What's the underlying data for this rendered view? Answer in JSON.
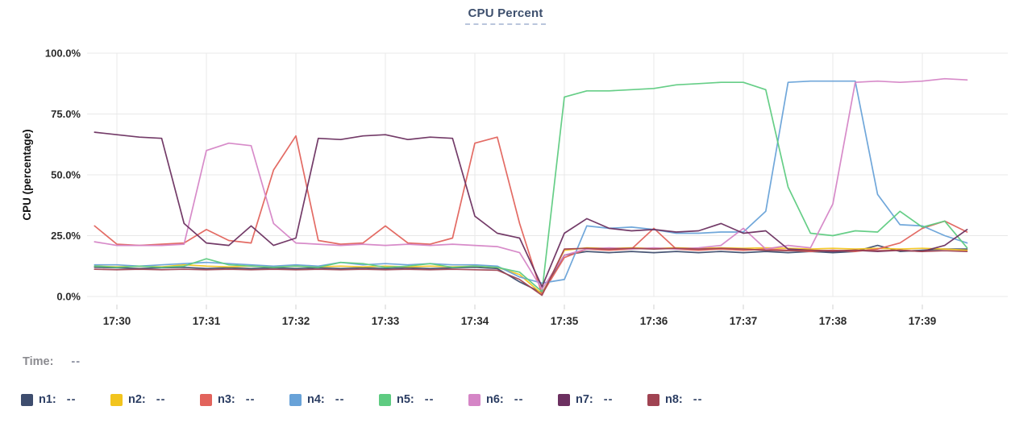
{
  "header": {
    "title": "CPU Percent"
  },
  "legend": {
    "time_label": "Time:",
    "time_value": "--",
    "entries": [
      {
        "label": "n1:",
        "value": "--"
      },
      {
        "label": "n2:",
        "value": "--"
      },
      {
        "label": "n3:",
        "value": "--"
      },
      {
        "label": "n4:",
        "value": "--"
      },
      {
        "label": "n5:",
        "value": "--"
      },
      {
        "label": "n6:",
        "value": "--"
      },
      {
        "label": "n7:",
        "value": "--"
      },
      {
        "label": "n8:",
        "value": "--"
      }
    ]
  },
  "chart_data": {
    "type": "line",
    "title": "CPU Percent",
    "ylabel": "CPU (percentage)",
    "ylim": [
      0,
      100
    ],
    "y_tick_labels": [
      "100.0%",
      "75.0%",
      "50.0%",
      "25.0%",
      "0.0%"
    ],
    "y_tick_values": [
      100,
      75,
      50,
      25,
      0
    ],
    "x_tick_labels": [
      "17:30",
      "17:31",
      "17:32",
      "17:33",
      "17:34",
      "17:35",
      "17:36",
      "17:37",
      "17:38",
      "17:39"
    ],
    "grid": true,
    "legend_position": "bottom",
    "sample_interval_seconds": 15,
    "sample_times": [
      "17:29:45",
      "17:30:00",
      "17:30:15",
      "17:30:30",
      "17:30:45",
      "17:31:00",
      "17:31:15",
      "17:31:30",
      "17:31:45",
      "17:32:00",
      "17:32:15",
      "17:32:30",
      "17:32:45",
      "17:33:00",
      "17:33:15",
      "17:33:30",
      "17:33:45",
      "17:34:00",
      "17:34:15",
      "17:34:30",
      "17:34:45",
      "17:35:00",
      "17:35:15",
      "17:35:30",
      "17:35:45",
      "17:36:00",
      "17:36:15",
      "17:36:30",
      "17:36:45",
      "17:37:00",
      "17:37:15",
      "17:37:30",
      "17:37:45",
      "17:38:00",
      "17:38:15",
      "17:38:30",
      "17:38:45",
      "17:39:00",
      "17:39:15",
      "17:39:30"
    ],
    "series": [
      {
        "name": "n1",
        "color": "#3e4d6e",
        "values": [
          12,
          11.8,
          11.5,
          11.8,
          12,
          11.5,
          11.8,
          11.5,
          11.8,
          11.5,
          11.8,
          11.5,
          11.8,
          11.5,
          11.8,
          11.5,
          11.8,
          12,
          11.5,
          6,
          1.5,
          17,
          18.5,
          18,
          18.5,
          18,
          18.5,
          18,
          18.5,
          18,
          18.5,
          18,
          18.5,
          18,
          18.5,
          21,
          18.5,
          19,
          19.5,
          19.5
        ]
      },
      {
        "name": "n2",
        "color": "#f2c41d",
        "values": [
          12.5,
          12.2,
          12.5,
          12.2,
          13,
          12.5,
          12.2,
          12.5,
          12.2,
          12.5,
          12.2,
          12.5,
          12.2,
          12.5,
          12.2,
          12.5,
          12.2,
          12.5,
          12,
          9,
          1,
          19,
          20,
          19.8,
          20,
          19.8,
          20,
          19.8,
          20,
          19.8,
          20,
          19.8,
          19.5,
          19.8,
          19.5,
          19.8,
          19.5,
          19.8,
          19.5,
          19
        ]
      },
      {
        "name": "n3",
        "color": "#e2635c",
        "values": [
          29,
          21.5,
          21,
          21.5,
          22,
          27.5,
          23,
          22,
          52,
          66,
          23,
          21.5,
          22,
          29,
          22,
          21.5,
          24,
          63,
          65.5,
          30,
          1,
          16,
          19.5,
          19,
          19.5,
          28,
          19.5,
          19,
          19.5,
          19,
          19.5,
          19,
          18.5,
          19,
          18.5,
          19.5,
          22,
          28,
          31,
          26.5
        ]
      },
      {
        "name": "n4",
        "color": "#68a2d8",
        "values": [
          13,
          13,
          12.5,
          13,
          13.5,
          14,
          13.5,
          13,
          12.5,
          13,
          12.5,
          14,
          13,
          13.5,
          13,
          13.5,
          13,
          13,
          12.5,
          8,
          5.5,
          7,
          29,
          28,
          28.5,
          27.5,
          26,
          26,
          26.5,
          26.5,
          35,
          88,
          88.5,
          88.5,
          88.5,
          42,
          29.5,
          29,
          25,
          22
        ]
      },
      {
        "name": "n5",
        "color": "#5ecb81",
        "values": [
          12.5,
          12,
          12.5,
          12,
          12.5,
          15.5,
          13,
          12.5,
          12,
          12.5,
          12,
          14,
          13.5,
          12,
          12.5,
          13.5,
          12,
          12.5,
          12,
          10,
          2,
          82,
          84.5,
          84.5,
          85,
          85.5,
          87,
          87.5,
          88,
          88,
          85,
          45,
          26,
          25,
          27,
          26.5,
          35,
          28.5,
          31,
          20
        ]
      },
      {
        "name": "n6",
        "color": "#d585c6",
        "values": [
          22.5,
          21,
          21,
          21,
          21.5,
          60,
          63,
          62,
          30,
          22,
          21.5,
          21,
          21.5,
          21,
          21.5,
          21,
          21.5,
          21,
          20.5,
          18,
          3,
          17,
          19.5,
          20,
          19.5,
          20,
          19.5,
          20,
          21,
          28,
          19.5,
          21,
          20,
          38,
          88,
          88.5,
          88,
          88.5,
          89.5,
          89
        ]
      },
      {
        "name": "n7",
        "color": "#6c3060",
        "values": [
          67.5,
          66.5,
          65.5,
          65,
          30,
          22,
          21,
          29,
          21,
          24,
          65,
          64.5,
          66,
          66.5,
          64.5,
          65.5,
          65,
          33,
          26,
          24,
          4,
          26,
          32,
          28,
          27,
          27.5,
          26.5,
          27,
          30,
          26,
          27,
          19.5,
          19,
          18.5,
          19,
          18.5,
          19,
          18.5,
          21,
          27.5
        ]
      },
      {
        "name": "n8",
        "color": "#a04352",
        "values": [
          11.2,
          11,
          11.2,
          11,
          11.2,
          11,
          11.2,
          11,
          11.2,
          11,
          11.2,
          11,
          11.2,
          11,
          11.2,
          11,
          11.2,
          11,
          10.8,
          7,
          0.5,
          19.5,
          19.8,
          19.5,
          19.8,
          19.5,
          19.8,
          19.5,
          19.8,
          19.5,
          19,
          18.8,
          19,
          18.8,
          19,
          18.8,
          19,
          18.5,
          18.8,
          18.5
        ]
      }
    ]
  },
  "style": {
    "grid_color": "#e8e8e8",
    "tick_color": "#d0d0d0",
    "axis_text_color": "#2b2b2b",
    "ylabel_color": "#111111",
    "title_color": "#3d4f6d"
  }
}
